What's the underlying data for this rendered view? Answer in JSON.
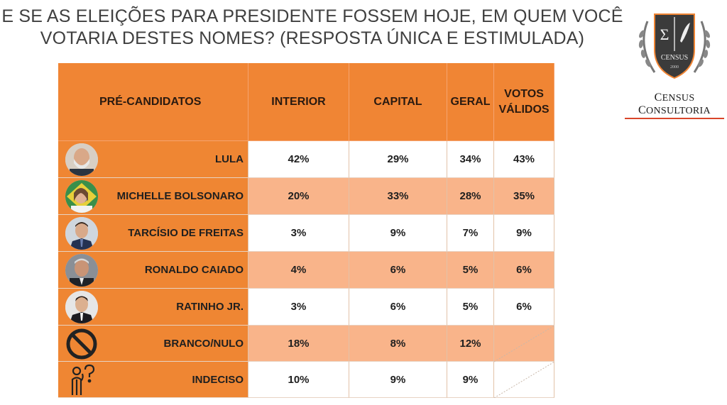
{
  "title": {
    "line1": "E SE AS ELEIÇÕES PARA PRESIDENTE FOSSEM HOJE, EM QUEM VOCÊ",
    "line2": "VOTARIA DESTES NOMES? (RESPOSTA ÚNICA E ESTIMULADA)"
  },
  "logo": {
    "seal_text": "CENSUS",
    "seal_year": "2000",
    "brand_first": "C",
    "brand_rest": "ENSUS ",
    "brand_second": "C",
    "brand_rest2": "ONSULTORIA",
    "underline_color": "#d9452a"
  },
  "colors": {
    "header": "#f08534",
    "name_col": "#ef8633",
    "row_orange": "#f9b48a",
    "row_white": "#ffffff"
  },
  "table": {
    "headers": {
      "candidates": "PRÉ-CANDIDATOS",
      "interior": "INTERIOR",
      "capital": "CAPITAL",
      "geral": "GERAL",
      "votos_l1": "VOTOS",
      "votos_l2": "VÁLIDOS"
    },
    "rows": [
      {
        "name": "LULA",
        "icon": "lula-avatar",
        "interior": "42%",
        "capital": "29%",
        "geral": "34%",
        "validos": "43%"
      },
      {
        "name": "MICHELLE BOLSONARO",
        "icon": "michelle-avatar",
        "interior": "20%",
        "capital": "33%",
        "geral": "28%",
        "validos": "35%"
      },
      {
        "name": "TARCÍSIO DE FREITAS",
        "icon": "tarcisio-avatar",
        "interior": "3%",
        "capital": "9%",
        "geral": "7%",
        "validos": "9%"
      },
      {
        "name": "RONALDO CAIADO",
        "icon": "caiado-avatar",
        "interior": "4%",
        "capital": "6%",
        "geral": "5%",
        "validos": "6%"
      },
      {
        "name": "RATINHO JR.",
        "icon": "ratinho-avatar",
        "interior": "3%",
        "capital": "6%",
        "geral": "5%",
        "validos": "6%"
      },
      {
        "name": "BRANCO/NULO",
        "icon": "prohibited-icon",
        "interior": "18%",
        "capital": "8%",
        "geral": "12%",
        "validos": ""
      },
      {
        "name": "INDECISO",
        "icon": "undecided-person-icon",
        "interior": "10%",
        "capital": "9%",
        "geral": "9%",
        "validos": ""
      }
    ]
  }
}
